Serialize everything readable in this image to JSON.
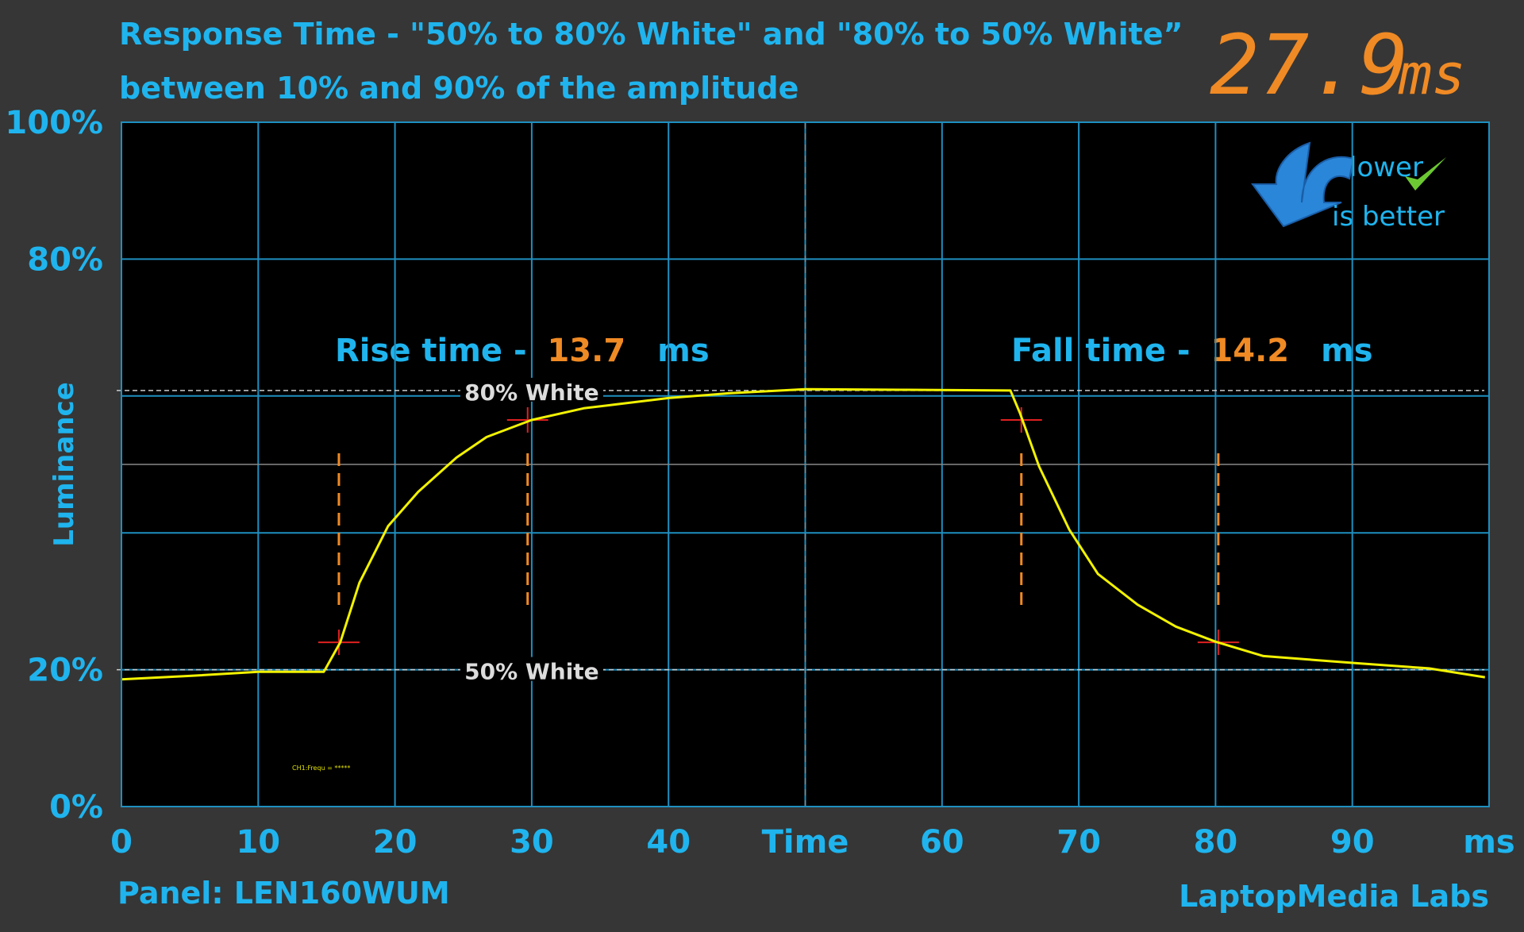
{
  "chart_data": {
    "type": "line",
    "title": "Response Time - \"50% to 80% White\" and \"80% to 50% White”",
    "subtitle": "between 10% and 90% of the amplitude",
    "total_value": 27.9,
    "total_unit": "ms",
    "badge_line1": "lower",
    "badge_line2": "is better",
    "y_label": "Luminance",
    "rise_label": "Rise time - ",
    "rise_value": 13.7,
    "rise_unit": "ms",
    "fall_label": "Fall time - ",
    "fall_value": 14.2,
    "fall_unit": "ms",
    "panel": "Panel: LEN160WUM",
    "credit": "LaptopMedia Labs",
    "scope_note": "CH1:Frequ = *****",
    "color": "#f2f200",
    "x": [
      0,
      5,
      10,
      14.8,
      16,
      17.4,
      19.5,
      21.7,
      24.5,
      26.7,
      30,
      33.8,
      40,
      44.4,
      50,
      57,
      65,
      65.7,
      67.1,
      69.3,
      71.4,
      74.3,
      77.1,
      80,
      83.5,
      90.6,
      95.6,
      99.7
    ],
    "values": [
      18.6,
      19.1,
      19.7,
      19.7,
      24,
      32.7,
      41,
      46,
      51,
      54,
      56.5,
      58.2,
      59.7,
      60.4,
      61,
      60.9,
      60.8,
      57.5,
      49.7,
      40.5,
      34,
      29.5,
      26.3,
      24.1,
      22,
      20.9,
      20.2,
      18.9
    ],
    "xlim": [
      0,
      100
    ],
    "ylim": [
      0,
      100
    ],
    "xticks": [
      0,
      10,
      20,
      30,
      40,
      {
        "value": 50,
        "label": "Time"
      },
      60,
      70,
      80,
      90,
      {
        "value": 100,
        "label": "ms"
      }
    ],
    "yticks": [
      {
        "value": 0,
        "label": "0%"
      },
      {
        "value": 20,
        "label": "20%"
      },
      {
        "value": 80,
        "label": "80%"
      },
      {
        "value": 100,
        "label": "100%"
      }
    ],
    "ygrid": [
      0,
      20,
      40,
      60,
      80,
      100
    ],
    "grid": true,
    "reference_lines": [
      {
        "label": "80% White",
        "value": 60.8
      },
      {
        "label": "50% White",
        "value": 20
      }
    ],
    "markers": [
      {
        "x": 15.9,
        "y": 24
      },
      {
        "x": 29.7,
        "y": 56.5
      },
      {
        "x": 65.8,
        "y": 56.5
      },
      {
        "x": 80.2,
        "y": 24
      }
    ]
  }
}
